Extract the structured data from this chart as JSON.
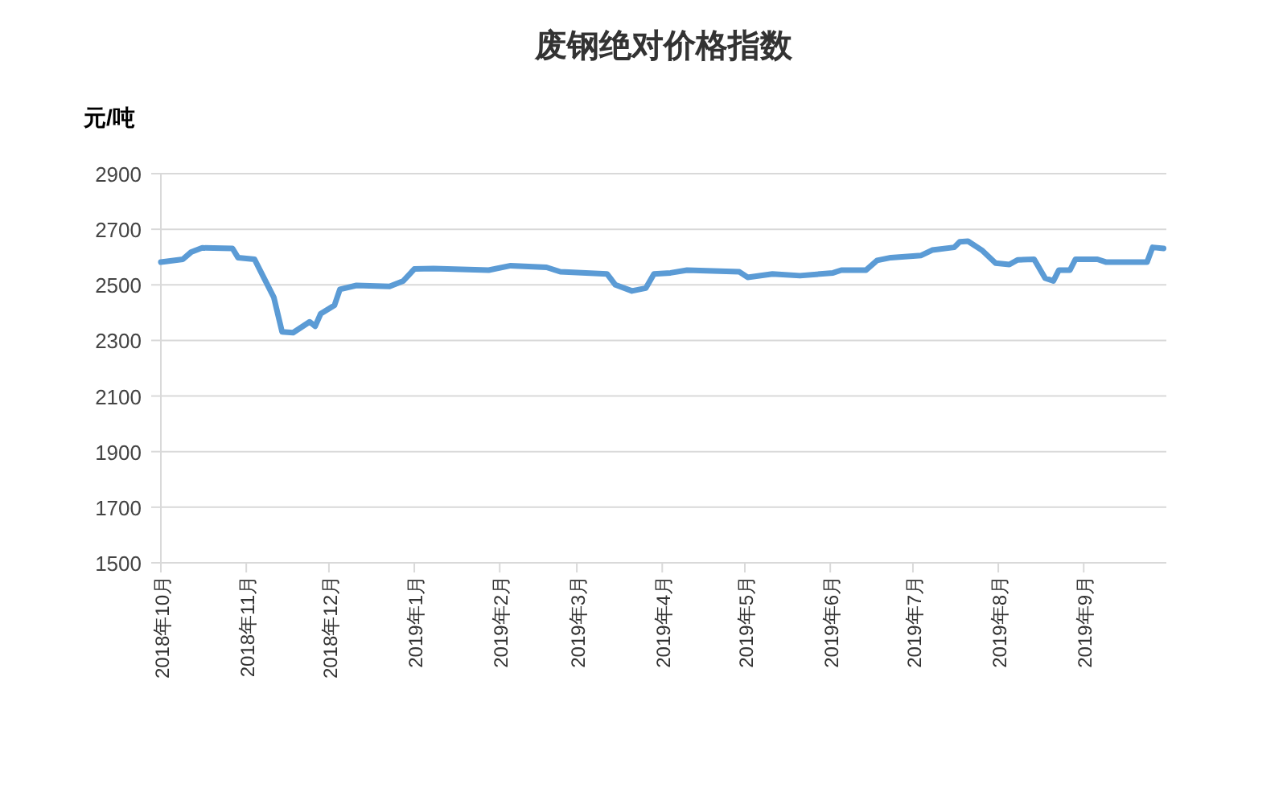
{
  "chart_data": {
    "type": "line",
    "title": "废钢绝对价格指数",
    "ylabel": "元/吨",
    "xlim": [
      "2018-10-01",
      "2019-10-01"
    ],
    "xticks": [
      {
        "value": "2018-10-01",
        "label": "2018年10月"
      },
      {
        "value": "2018-11-01",
        "label": "2018年11月"
      },
      {
        "value": "2018-12-01",
        "label": "2018年12月"
      },
      {
        "value": "2019-01-01",
        "label": "2019年1月"
      },
      {
        "value": "2019-02-01",
        "label": "2019年2月"
      },
      {
        "value": "2019-03-01",
        "label": "2019年3月"
      },
      {
        "value": "2019-04-01",
        "label": "2019年4月"
      },
      {
        "value": "2019-05-01",
        "label": "2019年5月"
      },
      {
        "value": "2019-06-01",
        "label": "2019年6月"
      },
      {
        "value": "2019-07-01",
        "label": "2019年7月"
      },
      {
        "value": "2019-08-01",
        "label": "2019年8月"
      },
      {
        "value": "2019-09-01",
        "label": "2019年9月"
      }
    ],
    "ylim": [
      1500,
      2900
    ],
    "yticks": [
      1500,
      1700,
      1900,
      2100,
      2300,
      2500,
      2700,
      2900
    ],
    "grid": "y",
    "marker": "none",
    "line_style": "solid",
    "series": [
      {
        "color": "#5b9bd5",
        "x": [
          "2018-10-01",
          "2018-10-09",
          "2018-10-12",
          "2018-10-16",
          "2018-10-27",
          "2018-10-29",
          "2018-11-04",
          "2018-11-07",
          "2018-11-11",
          "2018-11-14",
          "2018-11-18",
          "2018-11-24",
          "2018-11-26",
          "2018-11-28",
          "2018-12-03",
          "2018-12-05",
          "2018-12-11",
          "2018-12-23",
          "2018-12-28",
          "2019-01-01",
          "2019-01-08",
          "2019-01-28",
          "2019-02-05",
          "2019-02-18",
          "2019-02-23",
          "2019-03-12",
          "2019-03-15",
          "2019-03-21",
          "2019-03-26",
          "2019-03-29",
          "2019-04-04",
          "2019-04-10",
          "2019-04-29",
          "2019-05-02",
          "2019-05-11",
          "2019-05-21",
          "2019-06-02",
          "2019-06-05",
          "2019-06-14",
          "2019-06-18",
          "2019-06-23",
          "2019-07-04",
          "2019-07-08",
          "2019-07-16",
          "2019-07-18",
          "2019-07-21",
          "2019-07-26",
          "2019-07-31",
          "2019-08-05",
          "2019-08-08",
          "2019-08-14",
          "2019-08-18",
          "2019-08-21",
          "2019-08-23",
          "2019-08-27",
          "2019-08-29",
          "2019-09-06",
          "2019-09-09",
          "2019-09-24",
          "2019-09-26",
          "2019-09-30"
        ],
        "values": [
          2582,
          2592,
          2618,
          2633,
          2631,
          2598,
          2592,
          2533,
          2455,
          2331,
          2328,
          2367,
          2351,
          2396,
          2426,
          2484,
          2498,
          2494,
          2514,
          2557,
          2559,
          2553,
          2569,
          2563,
          2547,
          2539,
          2500,
          2478,
          2488,
          2539,
          2543,
          2553,
          2547,
          2527,
          2539,
          2533,
          2543,
          2553,
          2553,
          2588,
          2598,
          2606,
          2625,
          2635,
          2655,
          2657,
          2625,
          2578,
          2573,
          2590,
          2592,
          2524,
          2514,
          2553,
          2553,
          2592,
          2592,
          2582,
          2582,
          2635,
          2631
        ]
      }
    ]
  }
}
